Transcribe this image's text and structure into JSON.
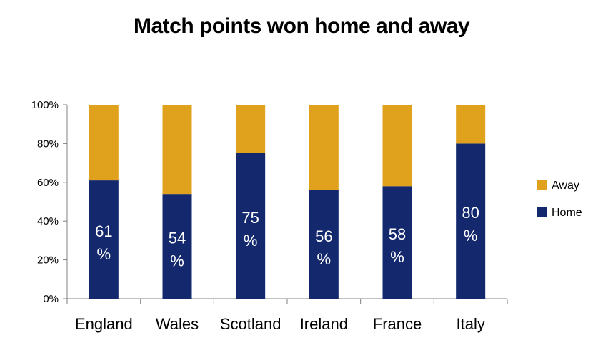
{
  "chart_data": {
    "type": "bar",
    "stacked": true,
    "title": "Match points won home and away",
    "categories": [
      "England",
      "Wales",
      "Scotland",
      "Ireland",
      "France",
      "Italy"
    ],
    "series": [
      {
        "name": "Home",
        "values": [
          61,
          54,
          75,
          56,
          58,
          80
        ],
        "color": "#14286e"
      },
      {
        "name": "Away",
        "values": [
          39,
          46,
          25,
          44,
          42,
          20
        ],
        "color": "#e0a21c"
      }
    ],
    "data_labels": [
      [
        "61",
        "%"
      ],
      [
        "54",
        "%"
      ],
      [
        "75",
        "%"
      ],
      [
        "56",
        "%"
      ],
      [
        "58",
        "%"
      ],
      [
        "80",
        "%"
      ]
    ],
    "ylim": [
      0,
      100
    ],
    "yticks": [
      0,
      20,
      40,
      60,
      80,
      100
    ],
    "ytick_labels": [
      "0%",
      "20%",
      "40%",
      "60%",
      "80%",
      "100%"
    ],
    "legend": {
      "placement": "right",
      "entries": [
        "Away",
        "Home"
      ]
    },
    "grid": false
  }
}
